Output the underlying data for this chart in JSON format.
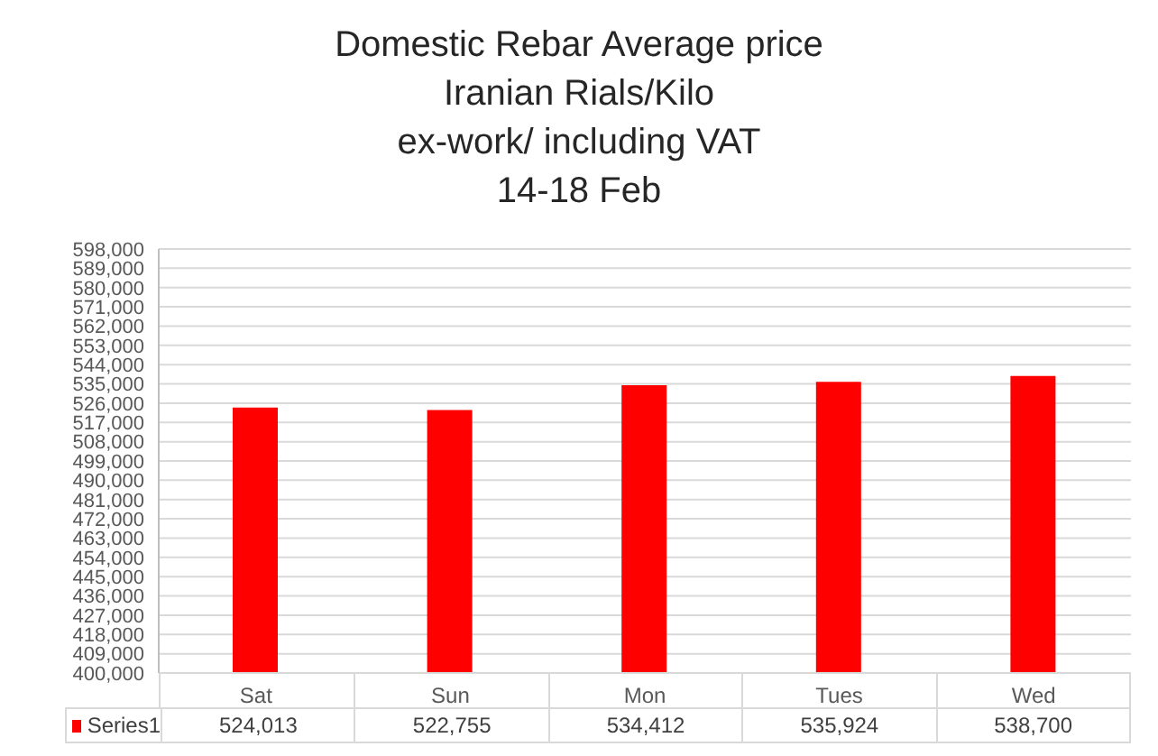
{
  "chart_data": {
    "type": "bar",
    "title": "Domestic Rebar Average price\nIranian Rials/Kilo\nex-work/ including VAT\n14-18 Feb",
    "categories": [
      "Sat",
      "Sun",
      "Mon",
      "Tues",
      "Wed"
    ],
    "series": [
      {
        "name": "Series1",
        "color": "#ff0000",
        "values": [
          524013,
          522755,
          534412,
          535924,
          538700
        ],
        "value_labels": [
          "524,013",
          "522,755",
          "534,412",
          "535,924",
          "538,700"
        ]
      }
    ],
    "ylim": [
      400000,
      598000
    ],
    "yticks": [
      {
        "value": 400000,
        "label": "400,000"
      },
      {
        "value": 409000,
        "label": "409,000"
      },
      {
        "value": 418000,
        "label": "418,000"
      },
      {
        "value": 427000,
        "label": "427,000"
      },
      {
        "value": 436000,
        "label": "436,000"
      },
      {
        "value": 445000,
        "label": "445,000"
      },
      {
        "value": 454000,
        "label": "454,000"
      },
      {
        "value": 463000,
        "label": "463,000"
      },
      {
        "value": 472000,
        "label": "472,000"
      },
      {
        "value": 481000,
        "label": "481,000"
      },
      {
        "value": 490000,
        "label": "490,000"
      },
      {
        "value": 499000,
        "label": "499,000"
      },
      {
        "value": 508000,
        "label": "508,000"
      },
      {
        "value": 517000,
        "label": "517,000"
      },
      {
        "value": 526000,
        "label": "526,000"
      },
      {
        "value": 535000,
        "label": "535,000"
      },
      {
        "value": 544000,
        "label": "544,000"
      },
      {
        "value": 553000,
        "label": "553,000"
      },
      {
        "value": 562000,
        "label": "562,000"
      },
      {
        "value": 571000,
        "label": "571,000"
      },
      {
        "value": 580000,
        "label": "580,000"
      },
      {
        "value": 589000,
        "label": "589,000"
      },
      {
        "value": 598000,
        "label": "598,000"
      }
    ],
    "grid": "y",
    "legend": "bottom"
  }
}
